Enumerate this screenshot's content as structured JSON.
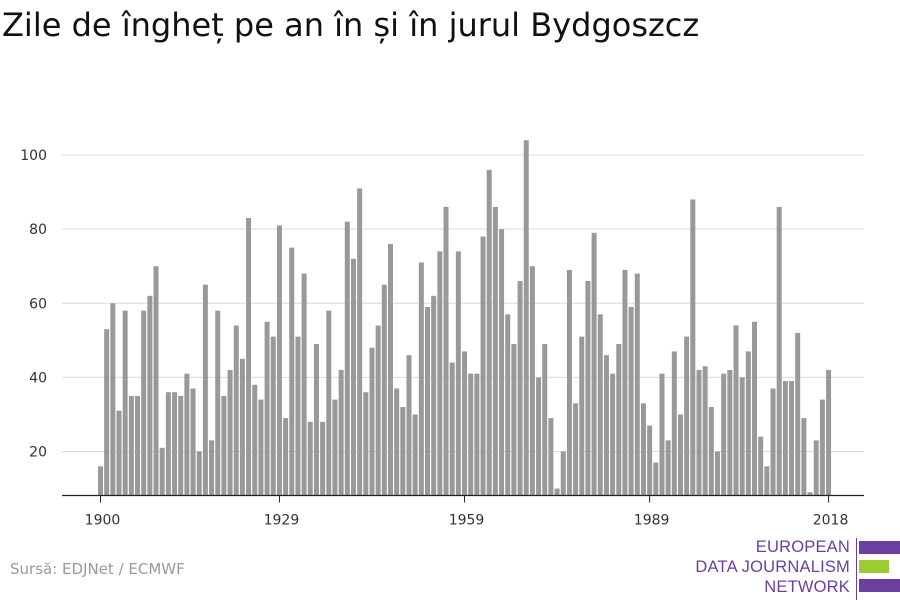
{
  "chart_data": {
    "type": "bar",
    "title": "Zile de îngheț pe an în și în jurul Bydgoszcz",
    "xlabel": "",
    "ylabel": "",
    "ylim": [
      8,
      108
    ],
    "yticks": [
      20,
      40,
      60,
      80,
      100
    ],
    "xticks": [
      1900,
      1929,
      1959,
      1989,
      2018
    ],
    "grid": true,
    "bar_color": "#999999",
    "categories": [
      1900,
      1901,
      1902,
      1903,
      1904,
      1905,
      1906,
      1907,
      1908,
      1909,
      1910,
      1911,
      1912,
      1913,
      1914,
      1915,
      1916,
      1917,
      1918,
      1919,
      1920,
      1921,
      1922,
      1923,
      1924,
      1925,
      1926,
      1927,
      1928,
      1929,
      1930,
      1931,
      1932,
      1933,
      1934,
      1935,
      1936,
      1937,
      1938,
      1939,
      1940,
      1941,
      1942,
      1943,
      1944,
      1945,
      1946,
      1947,
      1948,
      1949,
      1950,
      1951,
      1952,
      1953,
      1954,
      1955,
      1956,
      1957,
      1958,
      1959,
      1960,
      1961,
      1962,
      1963,
      1964,
      1965,
      1966,
      1967,
      1968,
      1969,
      1970,
      1971,
      1972,
      1973,
      1974,
      1975,
      1976,
      1977,
      1978,
      1979,
      1980,
      1981,
      1982,
      1983,
      1984,
      1985,
      1986,
      1987,
      1988,
      1989,
      1990,
      1991,
      1992,
      1993,
      1994,
      1995,
      1996,
      1997,
      1998,
      1999,
      2000,
      2001,
      2002,
      2003,
      2004,
      2005,
      2006,
      2007,
      2008,
      2009,
      2010,
      2011,
      2012,
      2013,
      2014,
      2015,
      2016,
      2017,
      2018
    ],
    "values": [
      16,
      53,
      60,
      31,
      58,
      35,
      35,
      58,
      62,
      70,
      21,
      36,
      36,
      35,
      41,
      37,
      20,
      65,
      23,
      58,
      35,
      42,
      54,
      45,
      83,
      38,
      34,
      55,
      51,
      81,
      29,
      75,
      51,
      68,
      28,
      49,
      28,
      58,
      34,
      42,
      82,
      72,
      91,
      36,
      48,
      54,
      65,
      76,
      37,
      32,
      46,
      30,
      71,
      59,
      62,
      74,
      86,
      44,
      74,
      47,
      41,
      41,
      78,
      96,
      86,
      80,
      57,
      49,
      66,
      104,
      70,
      40,
      49,
      29,
      10,
      20,
      69,
      33,
      51,
      66,
      79,
      57,
      46,
      41,
      49,
      69,
      59,
      68,
      33,
      27,
      17,
      41,
      23,
      47,
      30,
      51,
      88,
      42,
      43,
      32,
      20,
      41,
      42,
      54,
      40,
      47,
      55,
      24,
      16,
      37,
      86,
      39,
      39,
      52,
      29,
      9,
      23,
      34,
      42
    ]
  },
  "source": "Sursă: EDJNet / ECMWF",
  "logo": {
    "lines": [
      "EUROPEAN",
      "DATA JOURNALISM",
      "NETWORK"
    ],
    "colors": {
      "purple": "#6b3fa0",
      "green": "#9acd32"
    }
  }
}
